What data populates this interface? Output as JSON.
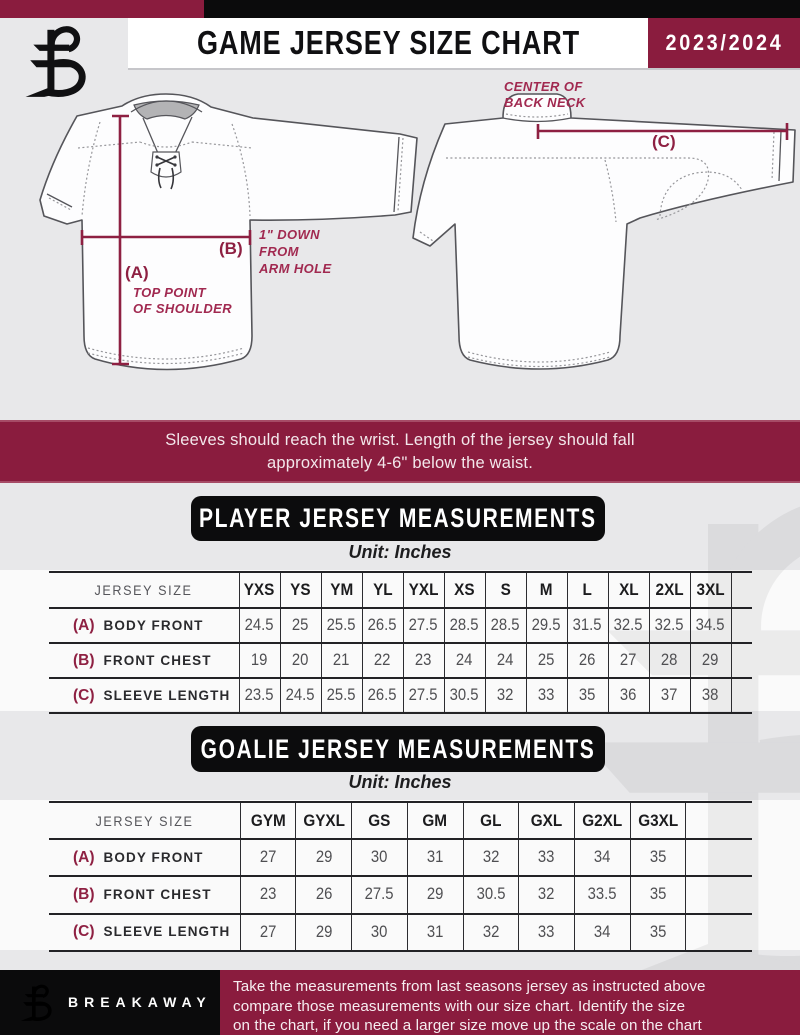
{
  "header": {
    "title": "GAME JERSEY SIZE CHART",
    "season": "2023/2024"
  },
  "diagram": {
    "front": {
      "label_a": "(A)",
      "label_b": "(B)",
      "note_a_lines": [
        "TOP POINT",
        "OF SHOULDER"
      ],
      "note_b_lines": [
        "1\" DOWN",
        "FROM",
        "ARM HOLE"
      ]
    },
    "back": {
      "label_c": "(C)",
      "note_c_lines": [
        "CENTER OF",
        "BACK NECK"
      ]
    }
  },
  "note_banner": {
    "lines": [
      "Sleeves should reach the wrist. Length of the jersey should fall",
      "approximately 4-6\" below the waist."
    ]
  },
  "player_section": {
    "title": "PLAYER JERSEY MEASUREMENTS",
    "unit": "Unit: Inches"
  },
  "goalie_section": {
    "title": "GOALIE JERSEY MEASUREMENTS",
    "unit": "Unit: Inches"
  },
  "chart_data": [
    {
      "type": "table",
      "title": "PLAYER JERSEY MEASUREMENTS",
      "unit": "Inches",
      "row_header": "JERSEY SIZE",
      "columns": [
        "YXS",
        "YS",
        "YM",
        "YL",
        "YXL",
        "XS",
        "S",
        "M",
        "L",
        "XL",
        "2XL",
        "3XL"
      ],
      "rows": [
        {
          "key": "(A)",
          "label": "BODY FRONT",
          "values": [
            24.5,
            25,
            25.5,
            26.5,
            27.5,
            28.5,
            28.5,
            29.5,
            31.5,
            32.5,
            32.5,
            34.5
          ]
        },
        {
          "key": "(B)",
          "label": "FRONT CHEST",
          "values": [
            19,
            20,
            21,
            22,
            23,
            24,
            24,
            25,
            26,
            27,
            28,
            29
          ]
        },
        {
          "key": "(C)",
          "label": "SLEEVE LENGTH",
          "values": [
            23.5,
            24.5,
            25.5,
            26.5,
            27.5,
            30.5,
            32,
            33,
            35,
            36,
            37,
            38
          ]
        }
      ]
    },
    {
      "type": "table",
      "title": "GOALIE JERSEY MEASUREMENTS",
      "unit": "Inches",
      "row_header": "JERSEY SIZE",
      "columns": [
        "GYM",
        "GYXL",
        "GS",
        "GM",
        "GL",
        "GXL",
        "G2XL",
        "G3XL"
      ],
      "rows": [
        {
          "key": "(A)",
          "label": "BODY FRONT",
          "values": [
            27,
            29,
            30,
            31,
            32,
            33,
            34,
            35
          ]
        },
        {
          "key": "(B)",
          "label": "FRONT CHEST",
          "values": [
            23,
            26,
            27.5,
            29,
            30.5,
            32,
            33.5,
            35
          ]
        },
        {
          "key": "(C)",
          "label": "SLEEVE LENGTH",
          "values": [
            27,
            29,
            30,
            31,
            32,
            33,
            34,
            35
          ]
        }
      ]
    }
  ],
  "footer": {
    "brand": "BREAKAWAY",
    "lines": [
      "Take the measurements from last seasons jersey as instructed above",
      "compare those measurements  with our size chart. Identify the size",
      "on the chart, if you need a larger size move up the scale on the chart"
    ]
  }
}
